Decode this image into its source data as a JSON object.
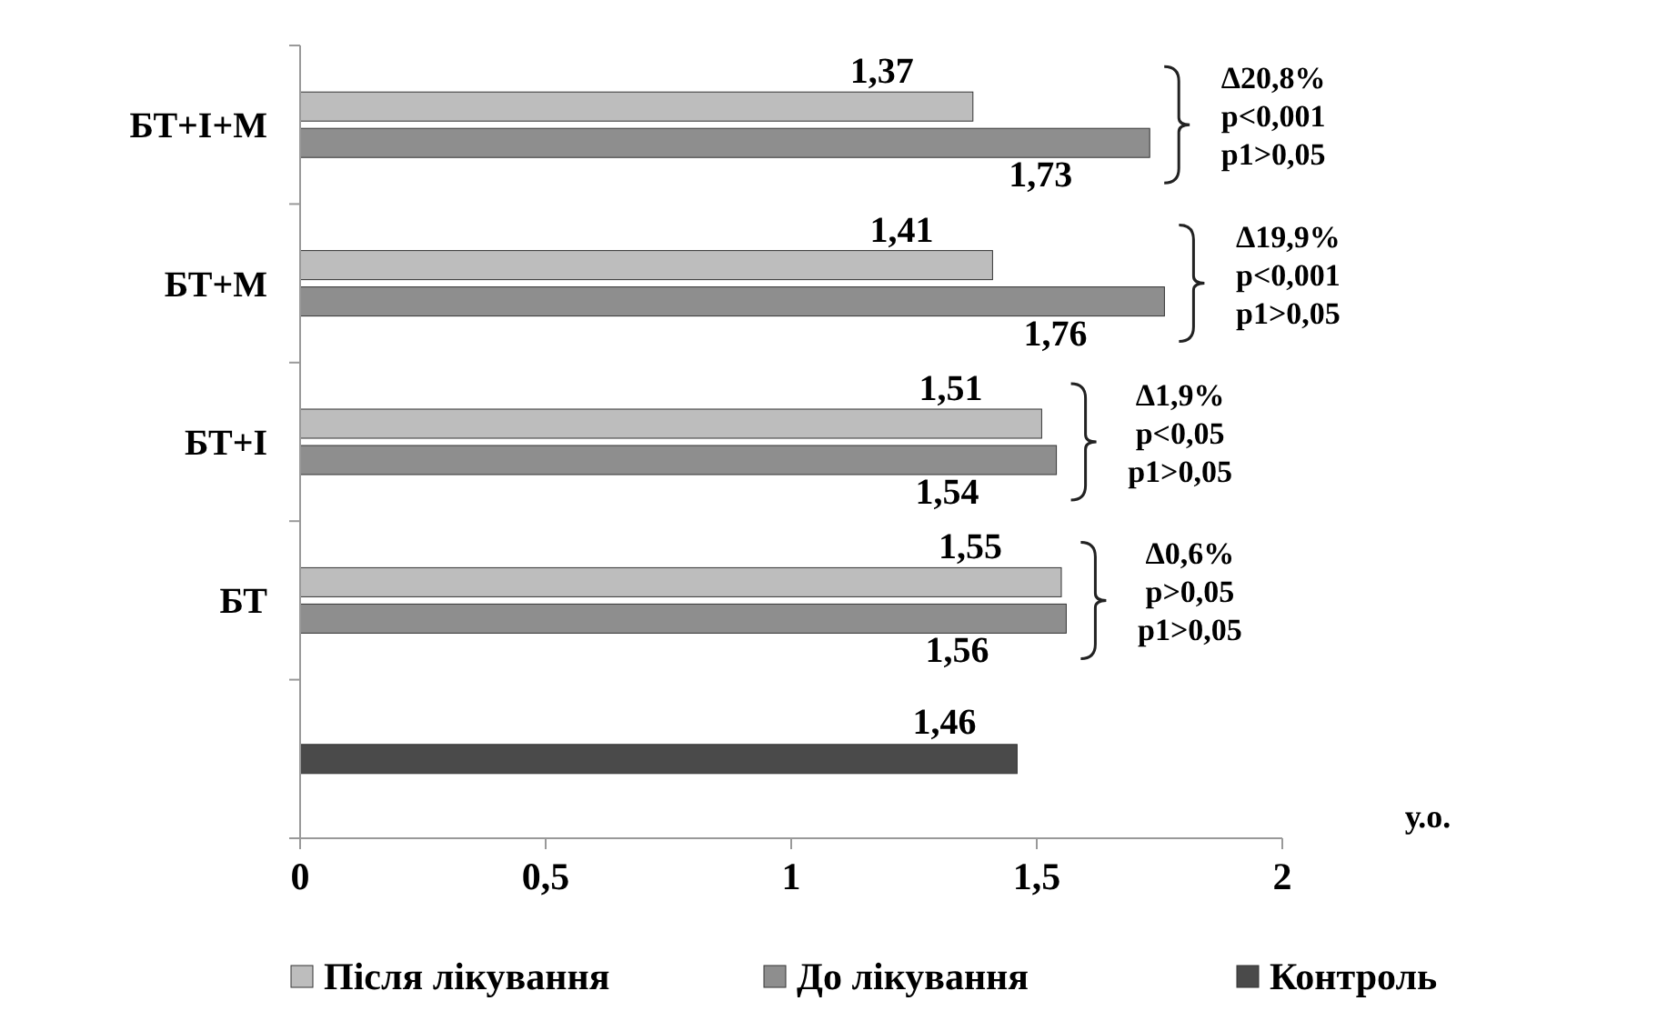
{
  "chart_data": {
    "type": "bar",
    "orientation": "horizontal",
    "categories": [
      "БТ+І+М",
      "БТ+М",
      "БТ+І",
      "БТ",
      null
    ],
    "series": [
      {
        "name": "Після лікування",
        "color": "#bdbdbd",
        "values": [
          1.37,
          1.41,
          1.51,
          1.55,
          null
        ],
        "value_labels": [
          "1,37",
          "1,41",
          "1,51",
          "1,55",
          null
        ]
      },
      {
        "name": "До лікування",
        "color": "#8e8e8e",
        "values": [
          1.73,
          1.76,
          1.54,
          1.56,
          null
        ],
        "value_labels": [
          "1,73",
          "1,76",
          "1,54",
          "1,56",
          null
        ]
      },
      {
        "name": "Контроль",
        "color": "#4a4a4a",
        "values": [
          null,
          null,
          null,
          null,
          1.46
        ],
        "value_labels": [
          null,
          null,
          null,
          null,
          "1,46"
        ]
      }
    ],
    "xlim": [
      0,
      2
    ],
    "xticks": [
      0,
      {
        "value": 0.5,
        "label": "0,5"
      },
      1,
      {
        "value": 1.5,
        "label": "1,5"
      },
      2
    ],
    "xlabel": "у.о.",
    "legend": "bottom",
    "grid": false,
    "annotations": [
      "Δ20,8%\np<0,001\np1>0,05",
      "Δ19,9%\np<0,001\np1>0,05",
      "Δ1,9%\np<0,05\np1>0,05",
      "Δ0,6%\np>0,05\np1>0,05"
    ]
  }
}
